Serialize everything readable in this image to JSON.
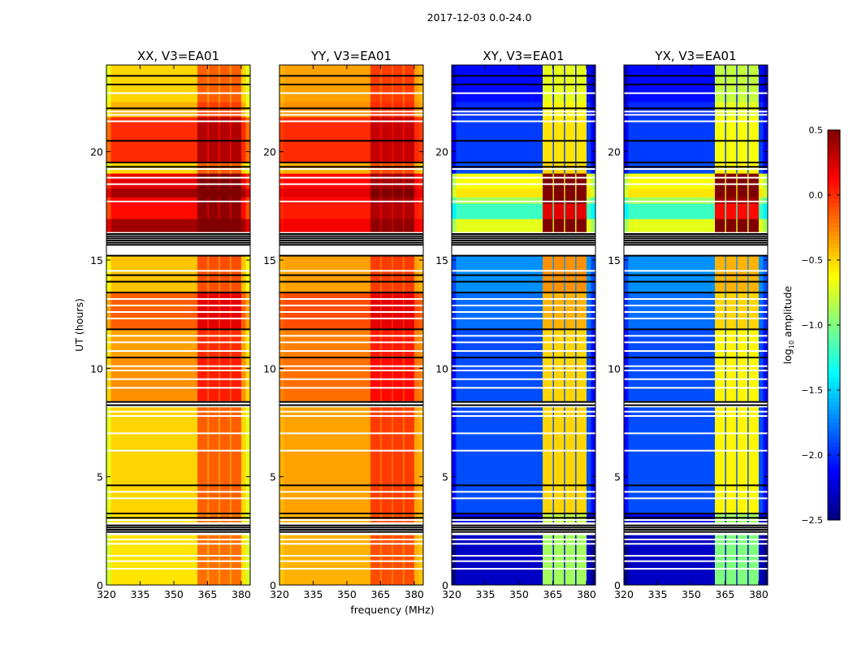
{
  "chart_data": {
    "type": "heatmap",
    "title": "2017-12-03 0.0-24.0",
    "xlabel": "frequency (MHz)",
    "ylabel": "UT (hours)",
    "xlim": [
      320,
      384
    ],
    "ylim": [
      0,
      24
    ],
    "xticks": [
      320,
      335,
      350,
      365,
      380
    ],
    "yticks": [
      0,
      5,
      10,
      15,
      20
    ],
    "panels": [
      {
        "title": "XX, V3=EA01",
        "band_boost": 0.35,
        "gap_boost": 0.1,
        "edge_offset": -0.2
      },
      {
        "title": "YY, V3=EA01",
        "band_boost": 0.3,
        "gap_boost": 0.1,
        "edge_offset": -0.05
      },
      {
        "title": "XY, V3=EA01",
        "band_boost": 1.4,
        "gap_boost": 0.0,
        "edge_offset": -0.2
      },
      {
        "title": "YX, V3=EA01",
        "band_boost": 1.3,
        "gap_boost": 0.0,
        "edge_offset": -0.2
      }
    ],
    "bands_mhz": [
      [
        360.5,
        365
      ],
      [
        365.5,
        370
      ],
      [
        370.5,
        375
      ],
      [
        375.5,
        380
      ]
    ],
    "edges_mhz": [
      [
        320,
        322
      ],
      [
        382,
        384
      ]
    ],
    "time_segments_note": "[t0_hours, t1_hours, XX, YY, XY, YX] log10 amplitude",
    "time_segments": [
      [
        0.0,
        2.3,
        -0.55,
        -0.4,
        -2.3,
        -2.3
      ],
      [
        2.9,
        3.3,
        -0.55,
        -0.4,
        -2.2,
        -2.2
      ],
      [
        3.3,
        8.2,
        -0.5,
        -0.35,
        -1.9,
        -1.9
      ],
      [
        8.5,
        10.5,
        -0.3,
        -0.2,
        -1.9,
        -1.9
      ],
      [
        10.5,
        11.8,
        -0.35,
        -0.25,
        -1.9,
        -1.9
      ],
      [
        11.8,
        13.5,
        -0.15,
        -0.1,
        -1.8,
        -1.8
      ],
      [
        13.5,
        15.2,
        -0.45,
        -0.35,
        -1.7,
        -1.7
      ],
      [
        16.3,
        16.9,
        0.4,
        0.15,
        -0.7,
        -0.7
      ],
      [
        16.9,
        17.6,
        0.1,
        0.05,
        -1.2,
        -1.2
      ],
      [
        17.6,
        17.9,
        0.15,
        0.1,
        -0.9,
        -0.9
      ],
      [
        17.9,
        18.3,
        0.4,
        0.2,
        -0.55,
        -0.55
      ],
      [
        18.3,
        19.0,
        0.2,
        0.1,
        -0.65,
        -0.65
      ],
      [
        19.0,
        19.5,
        -0.5,
        -0.4,
        -1.9,
        -1.9
      ],
      [
        19.5,
        21.6,
        0.0,
        0.0,
        -1.95,
        -1.95
      ],
      [
        21.6,
        22.3,
        -0.4,
        -0.3,
        -2.0,
        -2.0
      ],
      [
        22.3,
        24.0,
        -0.5,
        -0.35,
        -2.1,
        -2.1
      ]
    ],
    "flagged_white_hours": [
      0.75,
      1.1,
      1.35,
      1.9,
      2.1,
      3.0,
      4.0,
      4.3,
      6.2,
      7.0,
      7.8,
      8.0,
      9.1,
      9.5,
      9.9,
      10.1,
      10.8,
      11.2,
      11.5,
      12.3,
      12.6,
      12.9,
      13.2,
      14.5,
      15.3,
      15.4,
      15.5,
      17.7,
      18.5,
      18.8,
      19.2,
      21.4,
      21.7,
      21.85,
      22.7
    ],
    "black_hours": [
      2.45,
      2.55,
      2.65,
      2.75,
      3.1,
      3.3,
      4.6,
      8.3,
      8.45,
      10.5,
      11.8,
      13.5,
      14.0,
      14.3,
      15.2,
      15.7,
      15.8,
      15.9,
      16.0,
      16.1,
      16.2,
      19.3,
      19.5,
      20.5,
      22.0,
      23.1,
      23.5
    ],
    "colorbar": {
      "label": "log10 amplitude",
      "label_main": "log",
      "label_sub": "10",
      "label_rest": " amplitude",
      "range": [
        -2.5,
        0.5
      ],
      "ticks": [
        "0.5",
        "0.0",
        "−0.5",
        "−1.0",
        "−1.5",
        "−2.0",
        "−2.5"
      ],
      "tick_values": [
        0.5,
        0.0,
        -0.5,
        -1.0,
        -1.5,
        -2.0,
        -2.5
      ],
      "colormap": "jet"
    }
  }
}
